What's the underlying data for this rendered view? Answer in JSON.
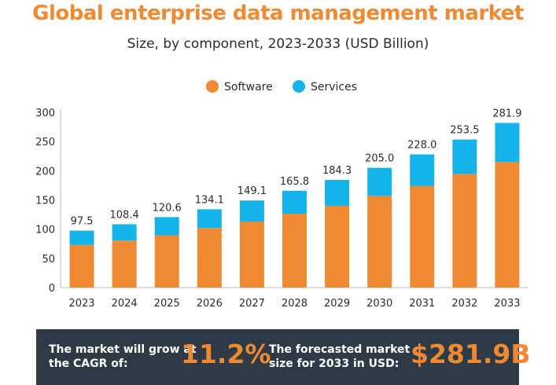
{
  "header": {
    "title": "Global enterprise data management market",
    "subtitle": "Size, by component, 2023-2033 (USD Billion)"
  },
  "colors": {
    "accent": "#F08A32",
    "software": "#F08A32",
    "services": "#14B4EB",
    "footer_bg": "#2E3A45"
  },
  "chart_data": {
    "type": "bar",
    "stacked": true,
    "categories": [
      "2023",
      "2024",
      "2025",
      "2026",
      "2027",
      "2028",
      "2029",
      "2030",
      "2031",
      "2032",
      "2033"
    ],
    "series": [
      {
        "name": "Software",
        "color": "#F08A32",
        "values": [
          73.0,
          80.5,
          89.5,
          102.0,
          113.0,
          126.5,
          140.0,
          157.0,
          174.0,
          194.5,
          215.0
        ]
      },
      {
        "name": "Services",
        "color": "#14B4EB",
        "values": [
          24.5,
          27.9,
          31.1,
          32.1,
          36.1,
          39.3,
          44.3,
          48.0,
          54.0,
          59.0,
          66.9
        ]
      }
    ],
    "totals": [
      "97.5",
      "108.4",
      "120.6",
      "134.1",
      "149.1",
      "165.8",
      "184.3",
      "205.0",
      "228.0",
      "253.5",
      "281.9"
    ],
    "yticks": [
      0,
      50,
      100,
      150,
      200,
      250,
      300
    ],
    "ylim": [
      0,
      300
    ],
    "legend_position": "top-center",
    "grid": false
  },
  "footer": {
    "cagr_label": "The market will grow at the CAGR of:",
    "cagr_value": "11.2%",
    "forecast_label": "The forecasted market size for 2033 in USD:",
    "forecast_value": "$281.9B"
  }
}
